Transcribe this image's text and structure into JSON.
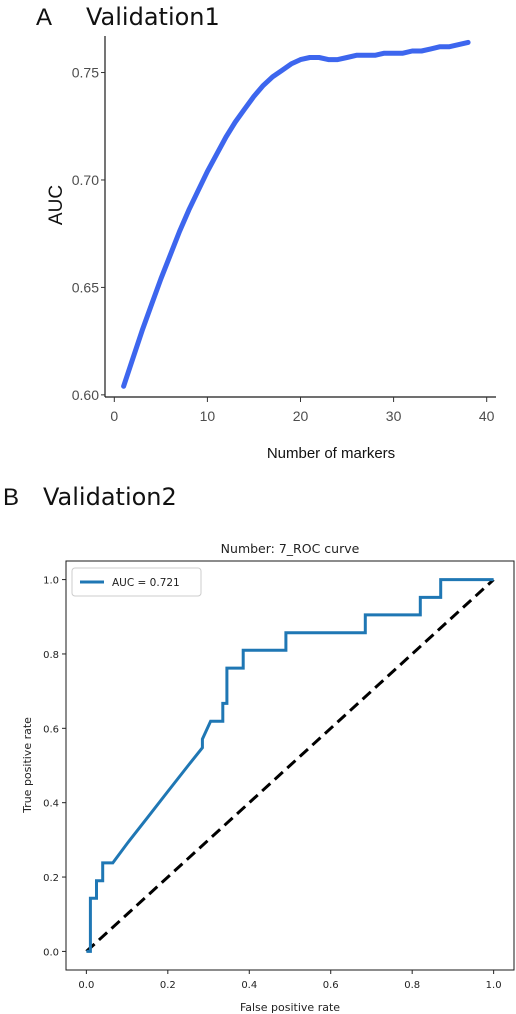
{
  "chart_data": [
    {
      "panel_letter": "A",
      "panel_title": "Validation1",
      "type": "line",
      "title": "",
      "xlabel": "Number of markers",
      "ylabel": "AUC",
      "xlim": [
        -1,
        41
      ],
      "ylim": [
        0.599,
        0.767
      ],
      "x_ticks": [
        0,
        10,
        20,
        30,
        40
      ],
      "y_ticks": [
        0.6,
        0.65,
        0.7,
        0.75
      ],
      "x_tick_labels": [
        "0",
        "10",
        "20",
        "30",
        "40"
      ],
      "y_tick_labels": [
        "0.60",
        "0.65",
        "0.70",
        "0.75"
      ],
      "grid": false,
      "color": "#3d66ee",
      "series": [
        {
          "x": [
            1,
            2,
            3,
            4,
            5,
            6,
            7,
            8,
            9,
            10,
            11,
            12,
            13,
            14,
            15,
            16,
            17,
            18,
            19,
            20,
            21,
            22,
            23,
            24,
            25,
            26,
            27,
            28,
            29,
            30,
            31,
            32,
            33,
            34,
            35,
            36,
            37,
            38
          ],
          "y": [
            0.604,
            0.617,
            0.63,
            0.642,
            0.654,
            0.665,
            0.676,
            0.686,
            0.695,
            0.704,
            0.712,
            0.72,
            0.727,
            0.733,
            0.739,
            0.744,
            0.748,
            0.751,
            0.754,
            0.756,
            0.757,
            0.757,
            0.756,
            0.756,
            0.757,
            0.758,
            0.758,
            0.758,
            0.759,
            0.759,
            0.759,
            0.76,
            0.76,
            0.761,
            0.762,
            0.762,
            0.763,
            0.764
          ]
        }
      ]
    },
    {
      "panel_letter": "B",
      "panel_title": "Validation2",
      "type": "line",
      "title": "Number: 7_ROC curve",
      "xlabel": "False positive rate",
      "ylabel": "True positive rate",
      "xlim": [
        -0.05,
        1.05
      ],
      "ylim": [
        -0.05,
        1.05
      ],
      "x_ticks": [
        0,
        0.2,
        0.4,
        0.6,
        0.8,
        1.0
      ],
      "y_ticks": [
        0,
        0.2,
        0.4,
        0.6,
        0.8,
        1.0
      ],
      "x_tick_labels": [
        "0.0",
        "0.2",
        "0.4",
        "0.6",
        "0.8",
        "1.0"
      ],
      "y_tick_labels": [
        "0.0",
        "0.2",
        "0.4",
        "0.6",
        "0.8",
        "1.0"
      ],
      "grid": false,
      "legend_position": "top-left",
      "series": [
        {
          "name": "AUC = 0.721",
          "color": "#1f77b4",
          "style": "solid",
          "x": [
            0.0,
            0.01,
            0.01,
            0.025,
            0.025,
            0.04,
            0.04,
            0.065,
            0.1,
            0.15,
            0.2,
            0.25,
            0.285,
            0.285,
            0.305,
            0.335,
            0.335,
            0.345,
            0.345,
            0.385,
            0.385,
            0.49,
            0.49,
            0.685,
            0.685,
            0.82,
            0.82,
            0.87,
            0.87,
            1.0
          ],
          "y": [
            0.0,
            0.0,
            0.143,
            0.143,
            0.19,
            0.19,
            0.238,
            0.238,
            0.29,
            0.36,
            0.43,
            0.5,
            0.548,
            0.571,
            0.619,
            0.619,
            0.667,
            0.667,
            0.762,
            0.762,
            0.81,
            0.81,
            0.857,
            0.857,
            0.905,
            0.905,
            0.952,
            0.952,
            1.0,
            1.0
          ]
        },
        {
          "color": "#000000",
          "style": "dashed",
          "x": [
            0,
            1
          ],
          "y": [
            0,
            1
          ]
        }
      ]
    }
  ]
}
